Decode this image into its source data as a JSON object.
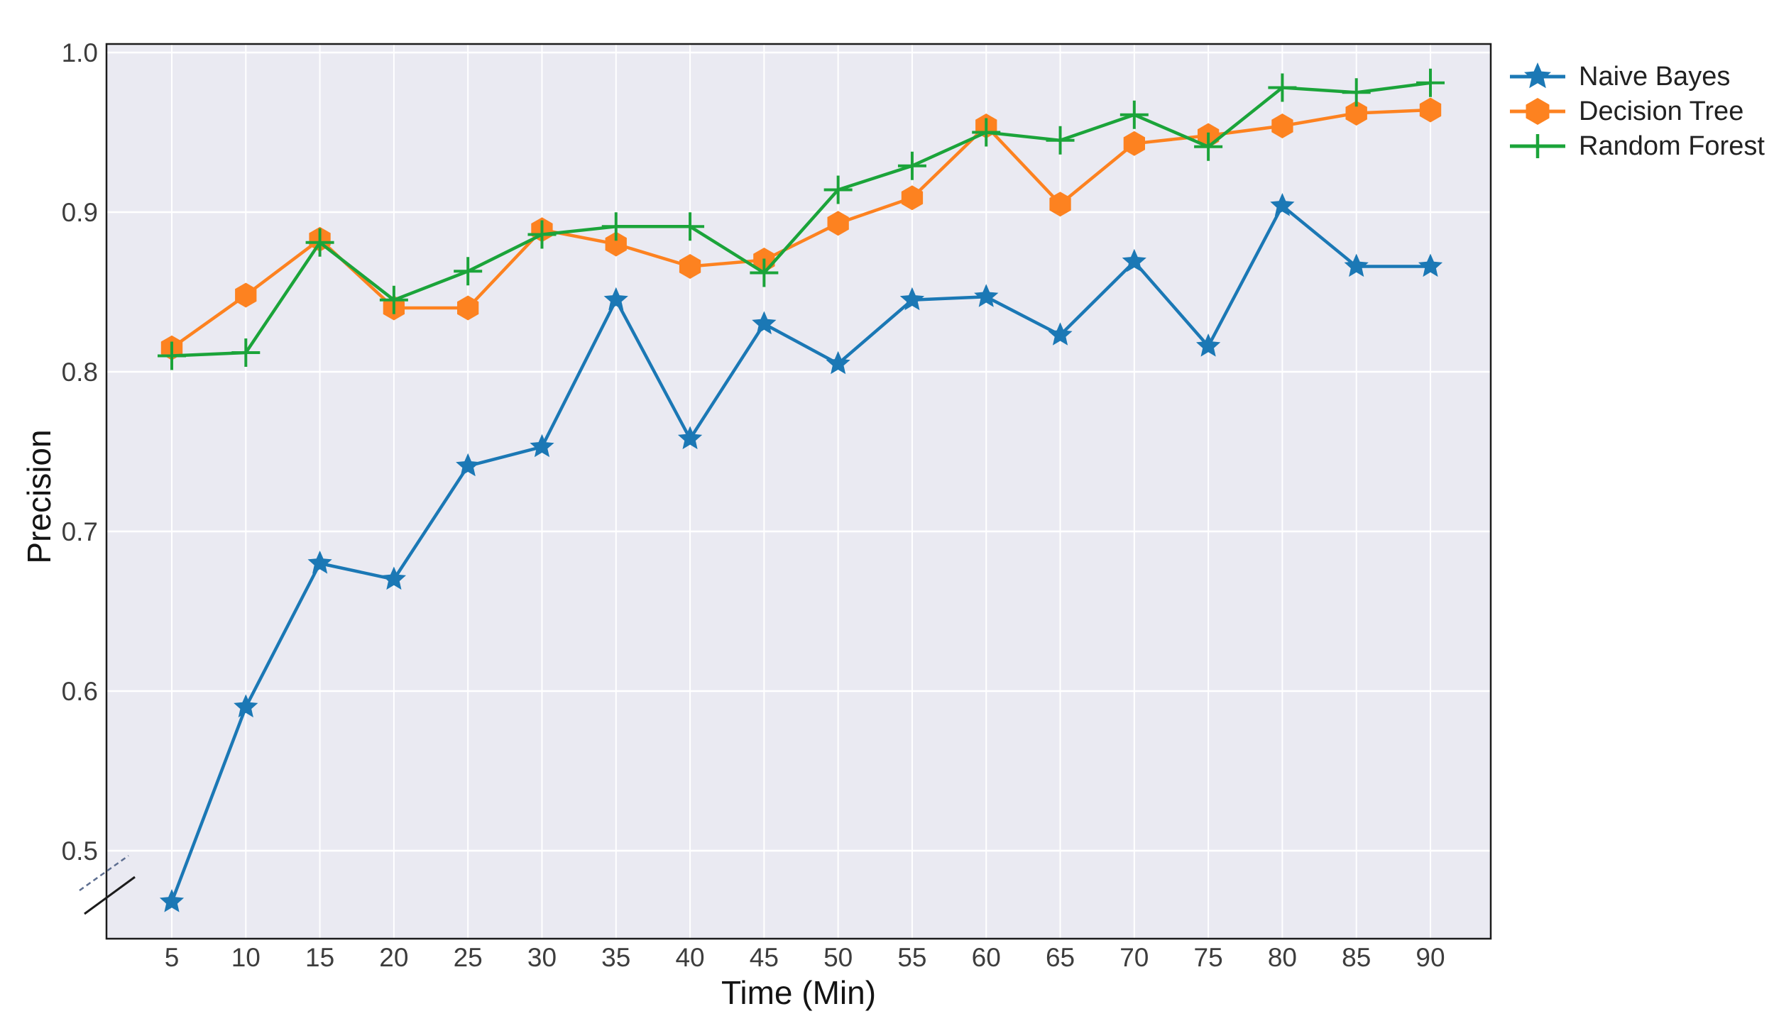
{
  "window": {
    "background": "#ffffff"
  },
  "chart_data": {
    "type": "line",
    "title": "",
    "xlabel": "Time (Min)",
    "ylabel": "Precision",
    "x": [
      5,
      10,
      15,
      20,
      25,
      30,
      35,
      40,
      45,
      50,
      55,
      60,
      65,
      70,
      75,
      80,
      85,
      90
    ],
    "x_tick_labels": [
      "5",
      "10",
      "15",
      "20",
      "25",
      "30",
      "35",
      "40",
      "45",
      "50",
      "55",
      "60",
      "65",
      "70",
      "75",
      "80",
      "85",
      "90"
    ],
    "y_ticks": [
      0.5,
      0.6,
      0.7,
      0.8,
      0.9,
      1.0
    ],
    "y_tick_labels": [
      "0.5",
      "0.6",
      "0.7",
      "0.8",
      "0.9",
      "1.0"
    ],
    "ylim": [
      0.445,
      1.005
    ],
    "grid": true,
    "legend_position": "outside-right-top",
    "axis_break": {
      "axis": "y",
      "below_value": 0.5,
      "note": "double diagonal slash marks on the y-axis below the 0.5 tick"
    },
    "series": [
      {
        "name": "Naive Bayes",
        "color": "#1b78b5",
        "marker": "star",
        "values": [
          0.468,
          0.59,
          0.68,
          0.67,
          0.741,
          0.753,
          0.845,
          0.758,
          0.83,
          0.805,
          0.845,
          0.847,
          0.823,
          0.869,
          0.816,
          0.904,
          0.866,
          0.866
        ]
      },
      {
        "name": "Decision Tree",
        "color": "#fd8220",
        "marker": "hexagon",
        "values": [
          0.815,
          0.848,
          0.883,
          0.84,
          0.84,
          0.889,
          0.88,
          0.866,
          0.87,
          0.893,
          0.909,
          0.954,
          0.905,
          0.943,
          0.948,
          0.954,
          0.962,
          0.964
        ]
      },
      {
        "name": "Random Forest",
        "color": "#1ba43a",
        "marker": "plus",
        "values": [
          0.81,
          0.812,
          0.881,
          0.845,
          0.863,
          0.886,
          0.891,
          0.891,
          0.862,
          0.914,
          0.929,
          0.95,
          0.945,
          0.961,
          0.941,
          0.978,
          0.975,
          0.981
        ]
      }
    ],
    "style": {
      "plot_background": "#eaeaf2",
      "grid_color": "#ffffff",
      "spine_color": "#1c1c1c",
      "tick_label_color": "#3d3d3d",
      "break_slash_dashed_color": "#5d6e90",
      "break_slash_solid_color": "#1c1c1c"
    }
  },
  "legend": {
    "items": [
      "Naive Bayes",
      "Decision Tree",
      "Random Forest"
    ]
  }
}
